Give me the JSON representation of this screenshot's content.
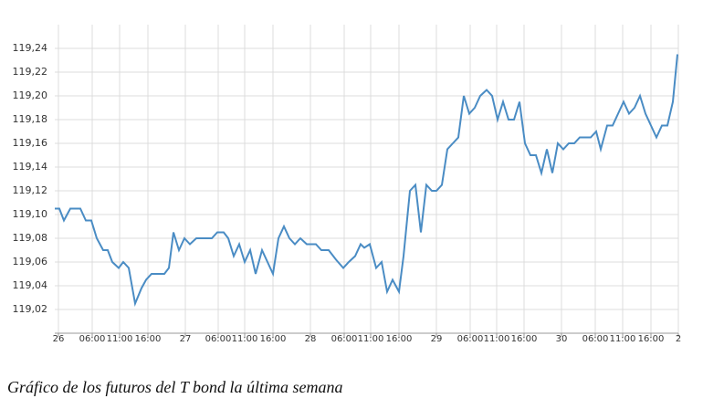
{
  "chart_data": {
    "type": "line",
    "caption": "Gráfico de los futuros del T bond la última semana",
    "xlim": [
      0,
      683
    ],
    "ylim": [
      119.0,
      119.26
    ],
    "xticks": [
      {
        "value": 4,
        "label": "26"
      },
      {
        "value": 41,
        "label": "06:00"
      },
      {
        "value": 71,
        "label": "11:00"
      },
      {
        "value": 102,
        "label": "16:00"
      },
      {
        "value": 143,
        "label": "27"
      },
      {
        "value": 179,
        "label": "06:00"
      },
      {
        "value": 208,
        "label": "11:00"
      },
      {
        "value": 239,
        "label": "16:00"
      },
      {
        "value": 280,
        "label": "28"
      },
      {
        "value": 317,
        "label": "06:00"
      },
      {
        "value": 346,
        "label": "11:00"
      },
      {
        "value": 377,
        "label": "16:00"
      },
      {
        "value": 418,
        "label": "29"
      },
      {
        "value": 455,
        "label": "06:00"
      },
      {
        "value": 484,
        "label": "11:00"
      },
      {
        "value": 514,
        "label": "16:00"
      },
      {
        "value": 555,
        "label": "30"
      },
      {
        "value": 592,
        "label": "06:00"
      },
      {
        "value": 622,
        "label": "11:00"
      },
      {
        "value": 653,
        "label": "16:00"
      },
      {
        "value": 683,
        "label": "2"
      }
    ],
    "yticks": [
      {
        "value": 119.02,
        "label": "119,02"
      },
      {
        "value": 119.04,
        "label": "119,04"
      },
      {
        "value": 119.06,
        "label": "119,06"
      },
      {
        "value": 119.08,
        "label": "119,08"
      },
      {
        "value": 119.1,
        "label": "119,10"
      },
      {
        "value": 119.12,
        "label": "119,12"
      },
      {
        "value": 119.14,
        "label": "119,14"
      },
      {
        "value": 119.16,
        "label": "119,16"
      },
      {
        "value": 119.18,
        "label": "119,18"
      },
      {
        "value": 119.2,
        "label": "119,20"
      },
      {
        "value": 119.22,
        "label": "119,22"
      },
      {
        "value": 119.24,
        "label": "119,24"
      }
    ],
    "grid": true,
    "color": "#4a8cc4",
    "x": [
      0,
      5,
      10,
      17,
      28,
      34,
      40,
      46,
      53,
      58,
      63,
      70,
      75,
      81,
      88,
      95,
      100,
      106,
      113,
      120,
      125,
      130,
      136,
      142,
      148,
      155,
      163,
      172,
      178,
      185,
      190,
      196,
      202,
      208,
      214,
      220,
      227,
      233,
      239,
      245,
      251,
      257,
      263,
      269,
      276,
      286,
      292,
      300,
      308,
      316,
      322,
      329,
      335,
      339,
      345,
      352,
      358,
      364,
      370,
      377,
      382,
      389,
      395,
      401,
      407,
      413,
      418,
      424,
      430,
      436,
      442,
      448,
      454,
      460,
      466,
      473,
      479,
      485,
      491,
      497,
      503,
      509,
      515,
      521,
      527,
      533,
      539,
      545,
      551,
      557,
      563,
      569,
      575,
      581,
      587,
      593,
      598,
      605,
      611,
      617,
      623,
      629,
      635,
      641,
      647,
      653,
      659,
      665,
      671,
      677,
      682
    ],
    "values": [
      119.105,
      119.105,
      119.095,
      119.105,
      119.105,
      119.095,
      119.095,
      119.08,
      119.07,
      119.07,
      119.06,
      119.055,
      119.06,
      119.055,
      119.025,
      119.038,
      119.045,
      119.05,
      119.05,
      119.05,
      119.055,
      119.085,
      119.07,
      119.08,
      119.075,
      119.08,
      119.08,
      119.08,
      119.085,
      119.085,
      119.08,
      119.065,
      119.075,
      119.06,
      119.07,
      119.05,
      119.07,
      119.06,
      119.05,
      119.08,
      119.09,
      119.08,
      119.075,
      119.08,
      119.075,
      119.075,
      119.07,
      119.07,
      119.062,
      119.055,
      119.06,
      119.065,
      119.075,
      119.072,
      119.075,
      119.055,
      119.06,
      119.035,
      119.045,
      119.035,
      119.065,
      119.12,
      119.125,
      119.085,
      119.125,
      119.12,
      119.12,
      119.125,
      119.155,
      119.16,
      119.165,
      119.2,
      119.185,
      119.19,
      119.2,
      119.205,
      119.2,
      119.18,
      119.195,
      119.18,
      119.18,
      119.195,
      119.16,
      119.15,
      119.15,
      119.135,
      119.155,
      119.135,
      119.16,
      119.155,
      119.16,
      119.16,
      119.165,
      119.165,
      119.165,
      119.17,
      119.155,
      119.175,
      119.175,
      119.185,
      119.195,
      119.185,
      119.19,
      119.2,
      119.185,
      119.175,
      119.165,
      119.175,
      119.175,
      119.195,
      119.235
    ]
  }
}
